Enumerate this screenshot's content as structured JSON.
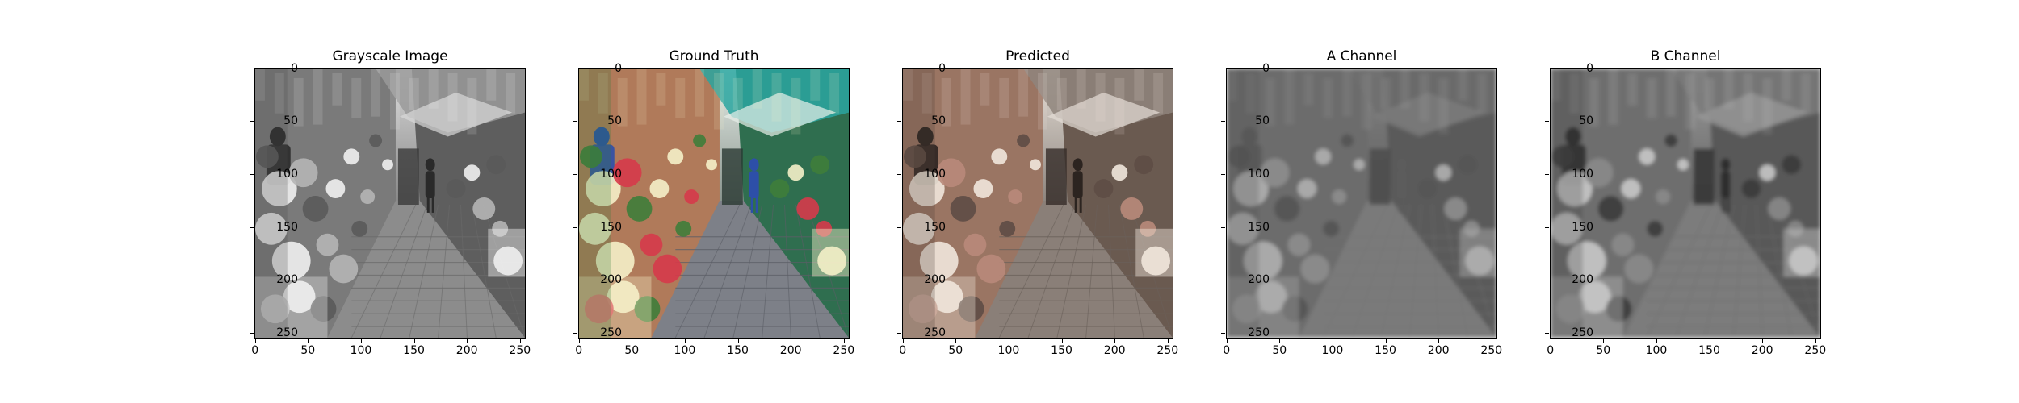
{
  "panels": [
    {
      "title": "Grayscale Image",
      "mode": "gray"
    },
    {
      "title": "Ground Truth",
      "mode": "color"
    },
    {
      "title": "Predicted",
      "mode": "sepia"
    },
    {
      "title": "A Channel",
      "mode": "chanA"
    },
    {
      "title": "B Channel",
      "mode": "chanB"
    }
  ],
  "axes": {
    "x_ticks": [
      "0",
      "50",
      "100",
      "150",
      "200",
      "250"
    ],
    "y_ticks": [
      "0",
      "50",
      "100",
      "150",
      "200",
      "250"
    ],
    "x_values": [
      0,
      50,
      100,
      150,
      200,
      250
    ],
    "y_values": [
      0,
      50,
      100,
      150,
      200,
      250
    ],
    "extent": 256
  }
}
